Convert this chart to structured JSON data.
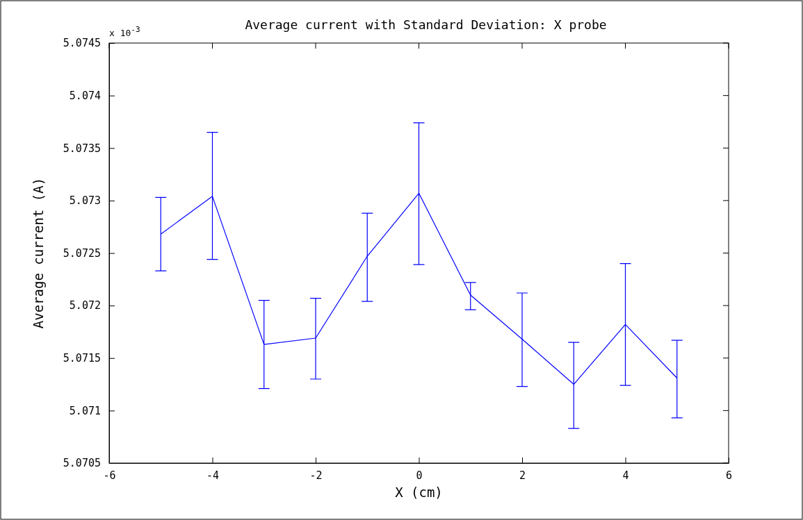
{
  "chart_data": {
    "type": "line",
    "title": "Average current with Standard Deviation: X probe",
    "xlabel": "X (cm)",
    "ylabel": "Average current (A)",
    "annotations": [
      "x 10$^{-3}$"
    ],
    "x": [
      -5,
      -4,
      -3,
      -2,
      -1,
      0,
      1,
      2,
      3,
      4,
      5
    ],
    "series": [
      {
        "color": "#0000ff",
        "values": [
          5.07268,
          5.07304,
          5.07163,
          5.07169,
          5.07247,
          5.07307,
          5.0721,
          5.07168,
          5.07125,
          5.07182,
          5.07131
        ],
        "errors": [
          [
            5.07233,
            5.07303
          ],
          [
            5.07244,
            5.07365
          ],
          [
            5.07121,
            5.07205
          ],
          [
            5.0713,
            5.07207
          ],
          [
            5.07204,
            5.07288
          ],
          [
            5.07239,
            5.07374
          ],
          [
            5.07196,
            5.07222
          ],
          [
            5.07123,
            5.07212
          ],
          [
            5.07083,
            5.07165
          ],
          [
            5.07124,
            5.0724
          ],
          [
            5.07093,
            5.07167
          ]
        ]
      }
    ],
    "xlim": [
      -6,
      6
    ],
    "xticks": [
      -6,
      -4,
      -2,
      0,
      2,
      4,
      6
    ],
    "ylim": [
      5.0705,
      5.0745
    ],
    "yticks": [
      5.0705,
      5.071,
      5.0715,
      5.072,
      5.0725,
      5.073,
      5.0735,
      5.074,
      5.0745
    ],
    "grid": false,
    "marker": "none",
    "line_style": "solid"
  }
}
